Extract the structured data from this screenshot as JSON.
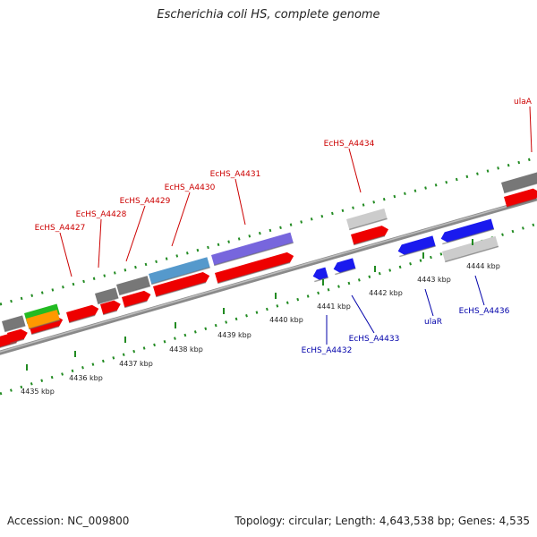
{
  "title": "Escherichia coli HS, complete genome",
  "footer": {
    "accession": "Accession: NC_009800",
    "summary": "Topology: circular; Length: 4,643,538 bp; Genes: 4,535"
  },
  "colors": {
    "forward_label": "#cc0000",
    "reverse_label": "#0000aa",
    "backbone": "#888888",
    "tick": "#228b22"
  },
  "ticks": [
    "4435 kbp",
    "4436 kbp",
    "4437 kbp",
    "4438 kbp",
    "4439 kbp",
    "4440 kbp",
    "4441 kbp",
    "4442 kbp",
    "4443 kbp",
    "4444 kbp"
  ],
  "gene_labels_forward": [
    "EcHS_A4427",
    "EcHS_A4428",
    "EcHS_A4429",
    "EcHS_A4430",
    "EcHS_A4431",
    "EcHS_A4434",
    "ulaA"
  ],
  "gene_labels_reverse": [
    "EcHS_A4432",
    "EcHS_A4433",
    "ulaR",
    "EcHS_A4436"
  ]
}
